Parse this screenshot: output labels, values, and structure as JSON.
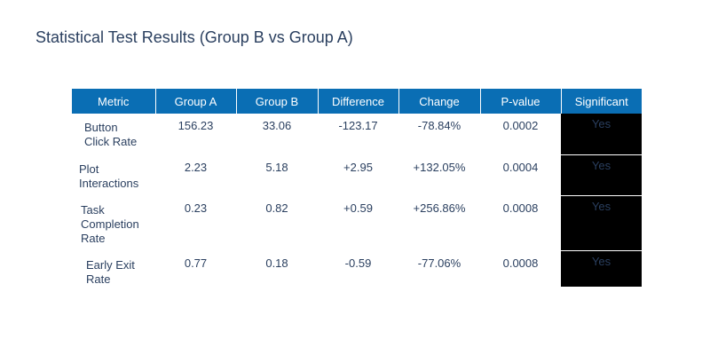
{
  "title": "Statistical Test Results (Group B vs Group A)",
  "colors": {
    "header_bg": "#0a6eb4",
    "header_text": "#ffffff",
    "cell_text": "#2a3f5f",
    "significant_bg": "#000000"
  },
  "chart_data": {
    "type": "table",
    "title": "Statistical Test Results (Group B vs Group A)",
    "columns": [
      "Metric",
      "Group A",
      "Group B",
      "Difference",
      "Change",
      "P-value",
      "Significant"
    ],
    "rows": [
      [
        "Button Click Rate",
        "156.23",
        "33.06",
        "-123.17",
        "-78.84%",
        "0.0002",
        "Yes"
      ],
      [
        "Plot Interactions",
        "2.23",
        "5.18",
        "+2.95",
        "+132.05%",
        "0.0004",
        "Yes"
      ],
      [
        "Task Completion Rate",
        "0.23",
        "0.82",
        "+0.59",
        "+256.86%",
        "0.0008",
        "Yes"
      ],
      [
        "Early Exit Rate",
        "0.77",
        "0.18",
        "-0.59",
        "-77.06%",
        "0.0008",
        "Yes"
      ]
    ]
  }
}
